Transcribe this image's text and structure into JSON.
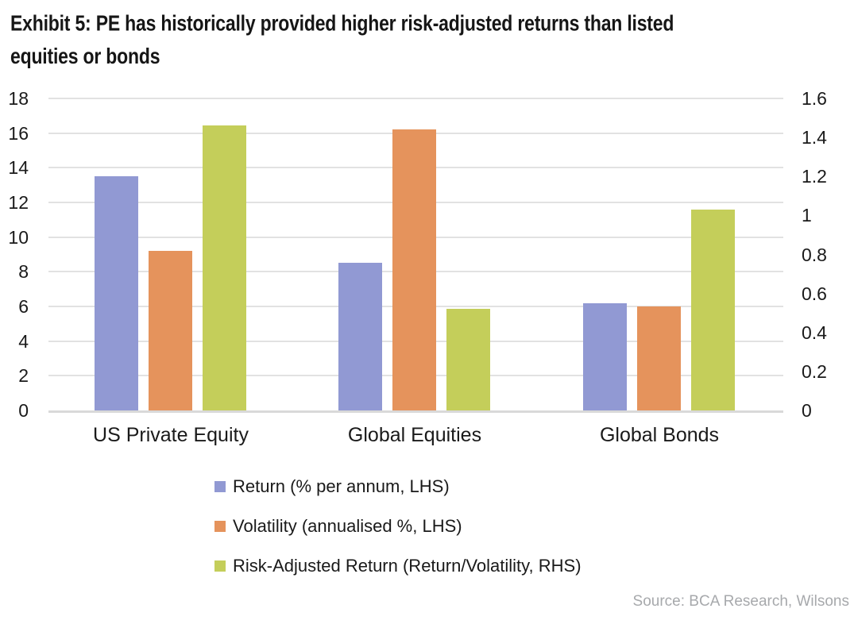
{
  "header": {
    "title_line1": "Exhibit 5: PE has historically provided higher risk-adjusted returns than listed",
    "title_line2": "equities or bonds"
  },
  "chart_data": {
    "type": "bar",
    "title": "Exhibit 5: PE has historically provided higher risk-adjusted returns than listed equities or bonds",
    "categories": [
      "US Private Equity",
      "Global Equities",
      "Global Bonds"
    ],
    "series": [
      {
        "name": "Return (% per annum, LHS)",
        "axis": "LHS",
        "color": "#9199d3",
        "values": [
          13.5,
          8.5,
          6.2
        ]
      },
      {
        "name": "Volatility (annualised %, LHS)",
        "axis": "LHS",
        "color": "#e5935c",
        "values": [
          9.2,
          16.2,
          6.0
        ]
      },
      {
        "name": "Risk-Adjusted Return (Return/Volatility, RHS)",
        "axis": "RHS",
        "color": "#c4ce5a",
        "values": [
          1.46,
          0.52,
          1.03
        ]
      }
    ],
    "left_axis": {
      "min": 0,
      "max": 18,
      "tick_labels": [
        "0",
        "2",
        "4",
        "6",
        "8",
        "10",
        "12",
        "14",
        "16",
        "18"
      ],
      "tick_values": [
        0,
        2,
        4,
        6,
        8,
        10,
        12,
        14,
        16,
        18
      ]
    },
    "right_axis": {
      "min": 0,
      "max": 1.6,
      "tick_labels": [
        "0",
        "0.2",
        "0.4",
        "0.6",
        "0.8",
        "1",
        "1.2",
        "1.4",
        "1.6"
      ],
      "tick_values": [
        0,
        0.2,
        0.4,
        0.6,
        0.8,
        1,
        1.2,
        1.4,
        1.6
      ]
    },
    "grid": true,
    "legend_position": "bottom-left"
  },
  "source": {
    "label": "Source: BCA Research, Wilsons"
  },
  "colors": {
    "gridline": "#e2e2e2",
    "axis_line": "#d9d9d9",
    "text": "#1a1a1a",
    "source_text": "#a7a9ac"
  }
}
